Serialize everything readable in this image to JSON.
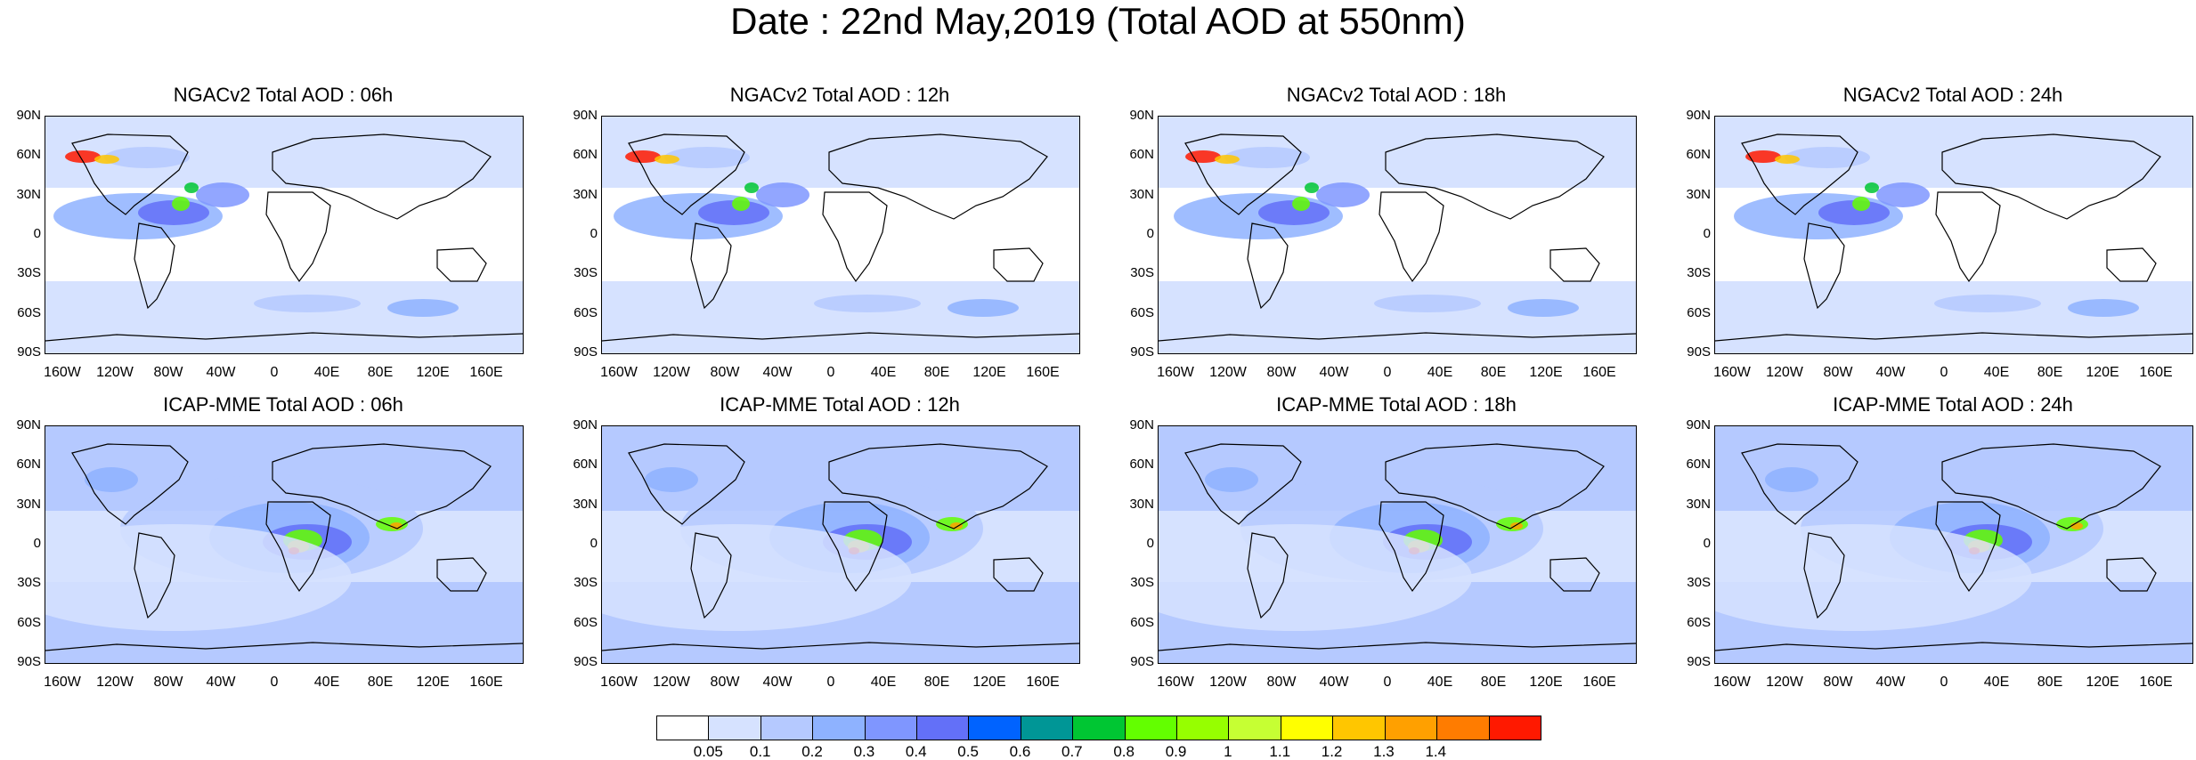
{
  "title": "Date : 22nd May,2019 (Total AOD at 550nm)",
  "lat_labels": [
    "90N",
    "60N",
    "30N",
    "0",
    "30S",
    "60S",
    "90S"
  ],
  "lon_labels": [
    "160W",
    "120W",
    "80W",
    "40W",
    "0",
    "40E",
    "80E",
    "120E",
    "160E"
  ],
  "panels": [
    {
      "title": "NGACv2 Total AOD : 06h"
    },
    {
      "title": "NGACv2 Total AOD : 12h"
    },
    {
      "title": "NGACv2 Total AOD : 18h"
    },
    {
      "title": "NGACv2 Total AOD : 24h"
    },
    {
      "title": "ICAP-MME Total AOD : 06h"
    },
    {
      "title": "ICAP-MME Total AOD : 12h"
    },
    {
      "title": "ICAP-MME Total AOD : 18h"
    },
    {
      "title": "ICAP-MME Total AOD : 24h"
    }
  ],
  "colorbar": {
    "colors": [
      "#ffffff",
      "#d6e2ff",
      "#b5c9ff",
      "#8eb2ff",
      "#7f96ff",
      "#6370f8",
      "#0063ff",
      "#009696",
      "#00c633",
      "#63ff00",
      "#96ff00",
      "#c6ff33",
      "#ffff00",
      "#ffc600",
      "#ffa000",
      "#ff7c00",
      "#ff1900"
    ],
    "labels": [
      "0.05",
      "0.1",
      "0.2",
      "0.3",
      "0.4",
      "0.5",
      "0.6",
      "0.7",
      "0.8",
      "0.9",
      "1",
      "1.1",
      "1.2",
      "1.3",
      "1.4"
    ]
  }
}
